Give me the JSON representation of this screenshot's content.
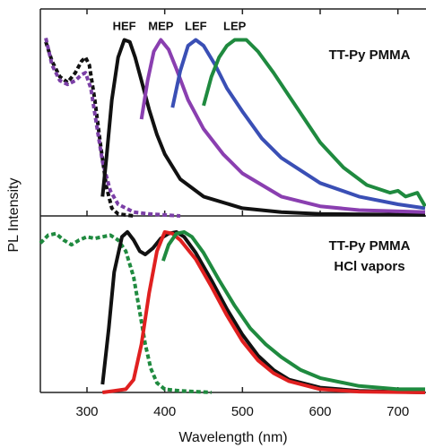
{
  "chart_data": [
    {
      "type": "line",
      "ylabel": "PL Intensity",
      "annotations": [
        "TT-Py PMMA"
      ],
      "xlim": [
        240,
        735
      ],
      "xticks": [
        300,
        400,
        500,
        600,
        700
      ],
      "ylim": [
        0,
        1.07
      ],
      "series": [
        {
          "color": "#111111",
          "style": "dashed",
          "x": [
            247,
            255,
            265,
            275,
            285,
            293,
            298,
            303,
            310,
            318,
            325,
            332,
            340,
            360
          ],
          "values": [
            0.9,
            0.8,
            0.72,
            0.69,
            0.74,
            0.8,
            0.82,
            0.78,
            0.6,
            0.35,
            0.15,
            0.04,
            0.01,
            0
          ]
        },
        {
          "color": "#7b3fa6",
          "style": "dashed",
          "x": [
            247,
            255,
            265,
            275,
            285,
            293,
            298,
            305,
            312,
            320,
            330,
            340,
            360,
            380,
            420
          ],
          "values": [
            0.92,
            0.78,
            0.7,
            0.68,
            0.7,
            0.73,
            0.74,
            0.66,
            0.48,
            0.28,
            0.13,
            0.06,
            0.02,
            0.01,
            0
          ]
        },
        {
          "name": "HEF",
          "color": "#111111",
          "style": "solid",
          "x": [
            320,
            325,
            332,
            340,
            348,
            355,
            362,
            370,
            380,
            390,
            400,
            420,
            450,
            500,
            550,
            600,
            735
          ],
          "values": [
            0.1,
            0.3,
            0.6,
            0.82,
            0.91,
            0.9,
            0.82,
            0.7,
            0.55,
            0.42,
            0.32,
            0.19,
            0.1,
            0.04,
            0.02,
            0.01,
            0.005
          ]
        },
        {
          "name": "MEP",
          "color": "#8a3fb0",
          "style": "solid",
          "x": [
            370,
            378,
            386,
            395,
            405,
            415,
            430,
            450,
            475,
            500,
            550,
            600,
            650,
            735
          ],
          "values": [
            0.5,
            0.7,
            0.85,
            0.91,
            0.86,
            0.76,
            0.6,
            0.45,
            0.32,
            0.22,
            0.1,
            0.05,
            0.03,
            0.02
          ]
        },
        {
          "name": "LEF",
          "color": "#3a4fb5",
          "style": "solid",
          "x": [
            410,
            420,
            430,
            440,
            450,
            465,
            480,
            500,
            525,
            550,
            600,
            650,
            700,
            735
          ],
          "values": [
            0.56,
            0.75,
            0.88,
            0.91,
            0.88,
            0.78,
            0.66,
            0.54,
            0.4,
            0.3,
            0.17,
            0.1,
            0.06,
            0.04
          ]
        },
        {
          "name": "LEP",
          "color": "#1f8a3f",
          "style": "solid",
          "x": [
            450,
            460,
            470,
            480,
            490,
            505,
            520,
            540,
            560,
            580,
            600,
            630,
            660,
            690,
            700,
            710,
            725,
            735
          ],
          "values": [
            0.57,
            0.72,
            0.82,
            0.88,
            0.91,
            0.91,
            0.85,
            0.74,
            0.62,
            0.5,
            0.38,
            0.25,
            0.16,
            0.12,
            0.13,
            0.1,
            0.12,
            0.05
          ]
        }
      ]
    },
    {
      "type": "line",
      "xlabel": "Wavelength (nm)",
      "annotations": [
        "TT-Py PMMA",
        "HCl vapors"
      ],
      "xlim": [
        240,
        735
      ],
      "xticks": [
        300,
        400,
        500,
        600,
        700
      ],
      "ylim": [
        0,
        1.1
      ],
      "series": [
        {
          "color": "#1f8a3f",
          "style": "dashed",
          "x": [
            240,
            250,
            260,
            270,
            280,
            290,
            300,
            310,
            320,
            330,
            340,
            350,
            360,
            368,
            375,
            382,
            390,
            400,
            420,
            460
          ],
          "values": [
            0.93,
            0.98,
            0.99,
            0.95,
            0.92,
            0.95,
            0.97,
            0.96,
            0.97,
            0.98,
            0.95,
            0.88,
            0.72,
            0.5,
            0.3,
            0.15,
            0.06,
            0.02,
            0.01,
            0
          ]
        },
        {
          "color": "#111111",
          "style": "solid",
          "x": [
            320,
            328,
            335,
            345,
            352,
            360,
            368,
            375,
            385,
            395,
            405,
            415,
            425,
            440,
            460,
            480,
            500,
            520,
            540,
            560,
            600,
            650,
            735
          ],
          "values": [
            0.05,
            0.4,
            0.75,
            0.97,
            1.0,
            0.95,
            0.88,
            0.86,
            0.9,
            0.96,
            0.99,
            1.0,
            0.97,
            0.87,
            0.7,
            0.52,
            0.36,
            0.23,
            0.14,
            0.08,
            0.03,
            0.01,
            0
          ]
        },
        {
          "color": "#e02020",
          "style": "solid",
          "x": [
            320,
            350,
            360,
            370,
            380,
            390,
            400,
            410,
            420,
            440,
            460,
            480,
            500,
            520,
            540,
            560,
            600,
            650,
            735
          ],
          "values": [
            0,
            0.02,
            0.08,
            0.3,
            0.62,
            0.88,
            1.0,
            0.99,
            0.95,
            0.83,
            0.66,
            0.48,
            0.32,
            0.2,
            0.12,
            0.07,
            0.02,
            0.005,
            0
          ]
        },
        {
          "color": "#1f8a3f",
          "style": "solid",
          "x": [
            398,
            405,
            415,
            425,
            435,
            450,
            470,
            490,
            510,
            530,
            550,
            575,
            600,
            650,
            700,
            735
          ],
          "values": [
            0.82,
            0.92,
            0.99,
            1.0,
            0.97,
            0.87,
            0.7,
            0.54,
            0.4,
            0.3,
            0.22,
            0.14,
            0.09,
            0.04,
            0.02,
            0.02
          ]
        }
      ]
    }
  ]
}
